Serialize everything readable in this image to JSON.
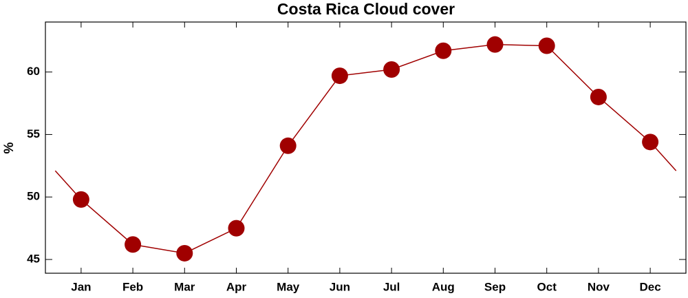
{
  "chart_data": {
    "type": "line",
    "title": "Costa Rica Cloud cover",
    "y_label": "%",
    "categories": [
      "Jan",
      "Feb",
      "Mar",
      "Apr",
      "May",
      "Jun",
      "Jul",
      "Aug",
      "Sep",
      "Oct",
      "Nov",
      "Dec"
    ],
    "series": [
      {
        "name": "Cloud cover",
        "color": "#a00000",
        "values": [
          49.8,
          46.2,
          45.5,
          47.5,
          54.1,
          59.7,
          60.2,
          61.7,
          62.2,
          62.1,
          58.0,
          54.4
        ]
      }
    ],
    "ylim": [
      43.9,
      64
    ],
    "yticks": [
      45,
      50,
      55,
      60
    ],
    "grid": false
  }
}
